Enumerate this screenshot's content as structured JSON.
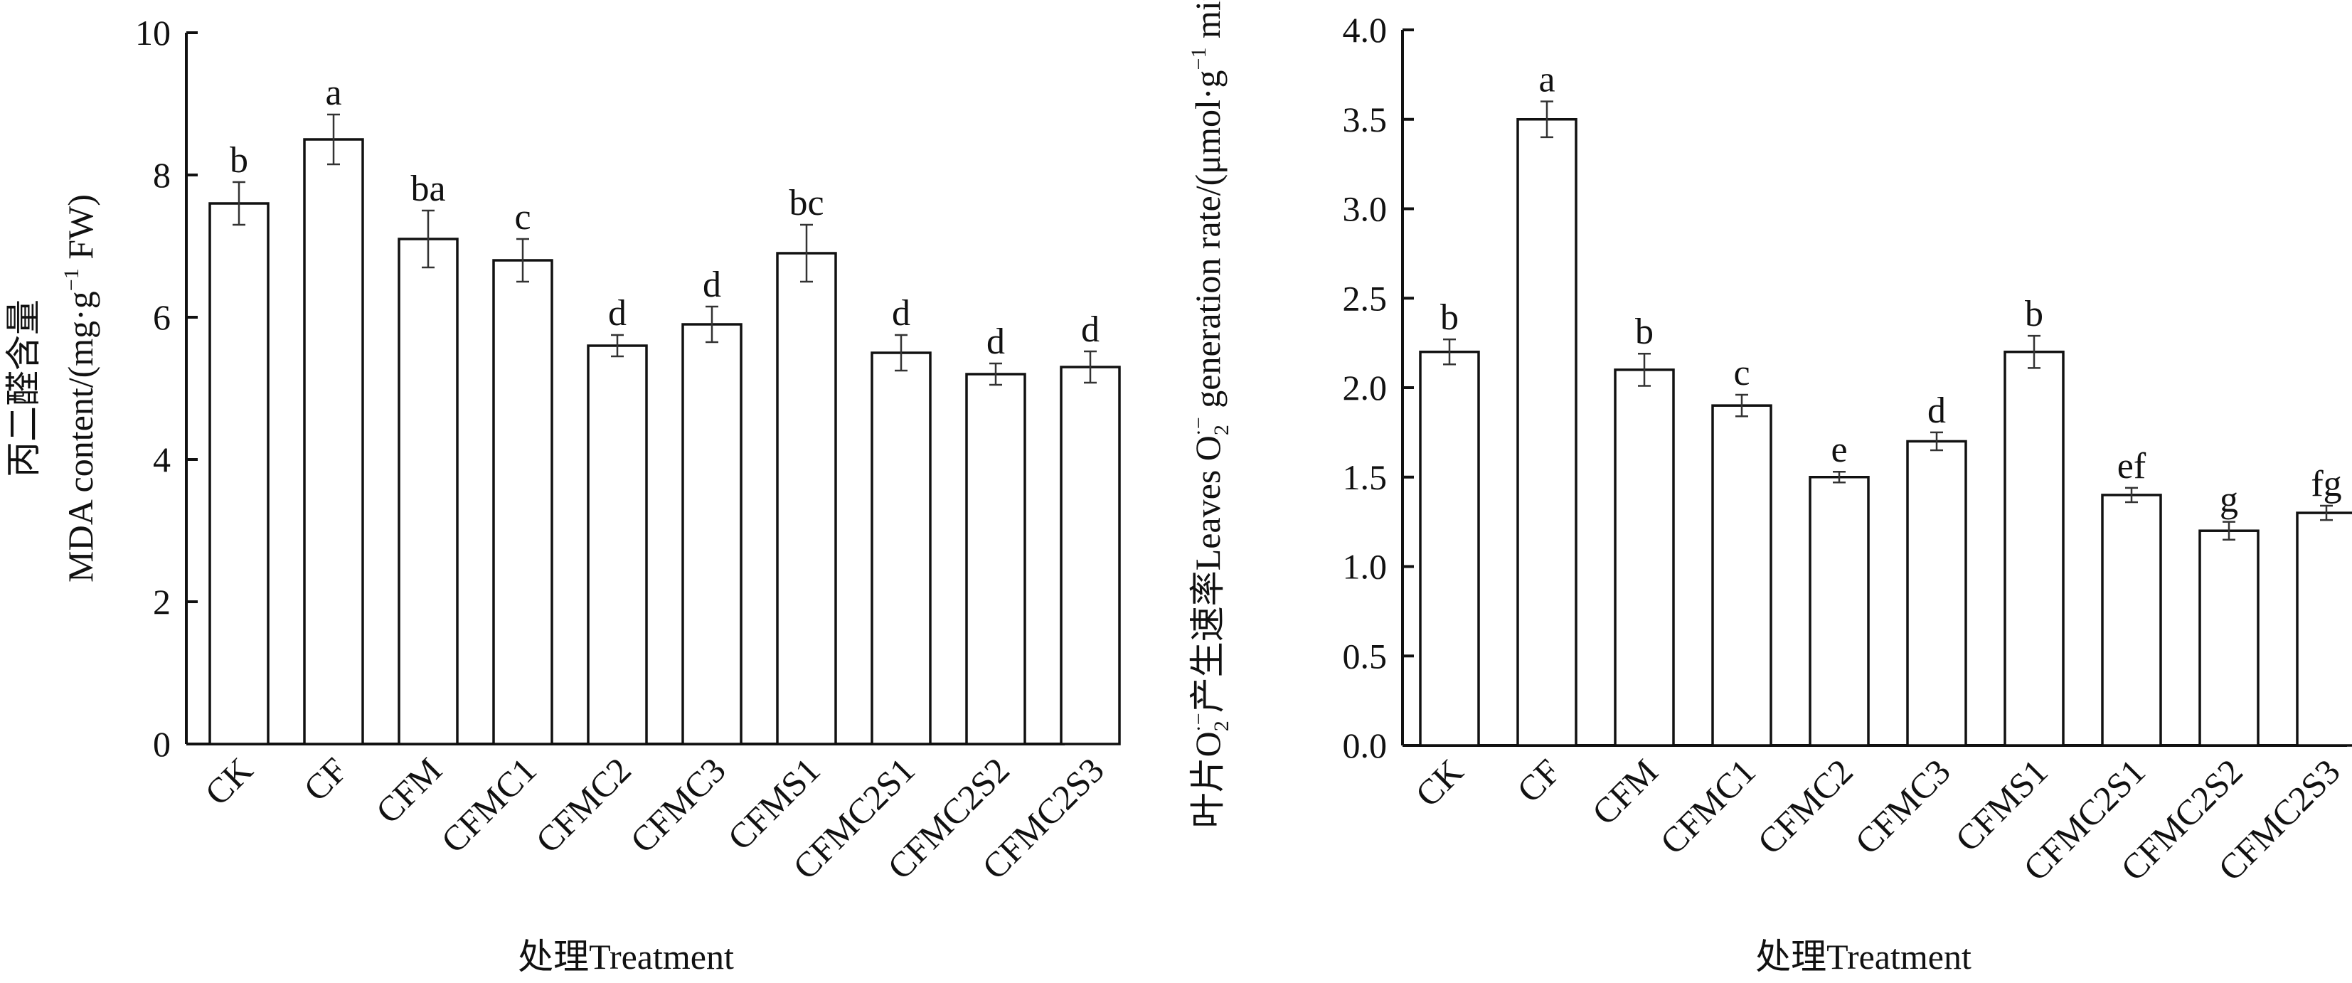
{
  "chart_data": [
    {
      "type": "bar",
      "categories": [
        "CK",
        "CF",
        "CFM",
        "CFMC1",
        "CFMC2",
        "CFMC3",
        "CFMS1",
        "CFMC2S1",
        "CFMC2S2",
        "CFMC2S3"
      ],
      "values": [
        7.6,
        8.5,
        7.1,
        6.8,
        5.6,
        5.9,
        6.9,
        5.5,
        5.2,
        5.3
      ],
      "errors": [
        0.3,
        0.35,
        0.4,
        0.3,
        0.15,
        0.25,
        0.4,
        0.25,
        0.15,
        0.22
      ],
      "letters": [
        "b",
        "a",
        "ba",
        "c",
        "d",
        "d",
        "bc",
        "d",
        "d",
        "d"
      ],
      "ylabel_cn": "丙二醛含量",
      "ylabel_en_a": "MDA content/(mg·g",
      "ylabel_en_sup": "−1",
      "ylabel_en_b": " FW)",
      "xlabel": "处理Treatment",
      "ylim": [
        0,
        10
      ],
      "yticks": [
        "0",
        "2",
        "4",
        "6",
        "8",
        "10"
      ],
      "bar_color": "#ffffff",
      "edge_color": "#111111",
      "grid": false
    },
    {
      "type": "bar",
      "categories": [
        "CK",
        "CF",
        "CFM",
        "CFMC1",
        "CFMC2",
        "CFMC3",
        "CFMS1",
        "CFMC2S1",
        "CFMC2S2",
        "CFMC2S3"
      ],
      "values": [
        2.2,
        3.5,
        2.1,
        1.9,
        1.5,
        1.7,
        2.2,
        1.4,
        1.2,
        1.3
      ],
      "errors": [
        0.07,
        0.1,
        0.09,
        0.06,
        0.03,
        0.05,
        0.09,
        0.04,
        0.05,
        0.04
      ],
      "letters": [
        "b",
        "a",
        "b",
        "c",
        "e",
        "d",
        "b",
        "ef",
        "g",
        "fg"
      ],
      "ylabel_cn_a": "叶片O",
      "ylabel_sub": "2",
      "ylabel_sup": "·−",
      "ylabel_cn_b": "产生速率",
      "ylabel_en_a": "Leaves O",
      "ylabel_en_b": " generation rate/(μmol·g",
      "ylabel_sup1": "−1",
      "ylabel_en_c": " min",
      "ylabel_en_d": ")",
      "xlabel": "处理Treatment",
      "ylim": [
        0,
        4
      ],
      "yticks": [
        "0.0",
        "0.5",
        "1.0",
        "1.5",
        "2.0",
        "2.5",
        "3.0",
        "3.5",
        "4.0"
      ],
      "bar_color": "#ffffff",
      "edge_color": "#111111",
      "grid": false
    }
  ]
}
